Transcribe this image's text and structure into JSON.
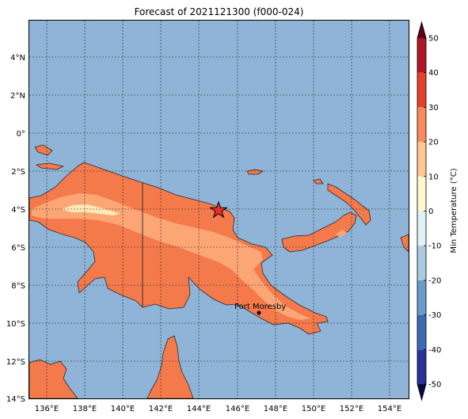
{
  "title": "Forecast of 2021121300 (f000-024)",
  "colorbar": {
    "label": "Min Temperature (°C)",
    "ticks": [
      "-50",
      "-40",
      "-30",
      "-20",
      "-10",
      "0",
      "10",
      "20",
      "30",
      "40",
      "50"
    ],
    "colors": [
      "#1b1b6e",
      "#27339a",
      "#3a6bb3",
      "#6a9ac8",
      "#a8cbe2",
      "#e2f1f6",
      "#fff8c8",
      "#fdc790",
      "#f88a5c",
      "#e4402b",
      "#b01625",
      "#7a0020"
    ],
    "extend_min_color": "#0a0a40",
    "extend_max_color": "#5e0016"
  },
  "axes": {
    "lon_labels": [
      "136°E",
      "138°E",
      "140°E",
      "142°E",
      "144°E",
      "146°E",
      "148°E",
      "150°E",
      "152°E",
      "154°E"
    ],
    "lat_labels": [
      "4°N",
      "2°N",
      "0°",
      "2°S",
      "4°S",
      "6°S",
      "8°S",
      "10°S",
      "12°S",
      "14°S"
    ]
  },
  "map": {
    "ocean_color": "#8fb4d8",
    "land_warm_color": "#f47a4c",
    "land_mild_color": "#fca675",
    "land_cool_color": "#ffe9b6",
    "marker": {
      "label": "star-marker",
      "color": "#e8302a"
    },
    "city": {
      "name": "Port Moresby"
    }
  }
}
